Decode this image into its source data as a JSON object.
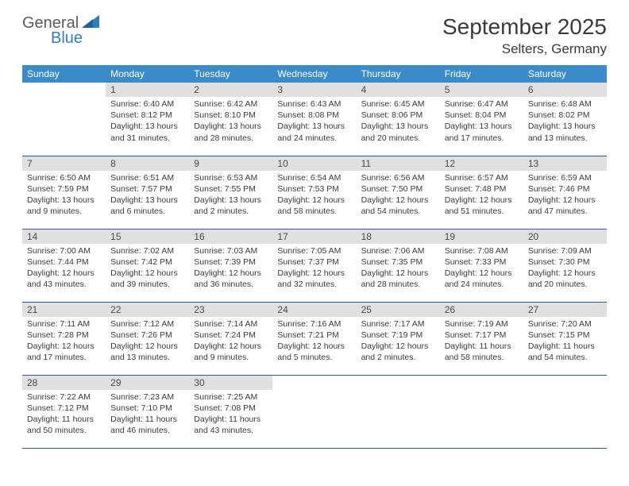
{
  "logo": {
    "line1": "General",
    "line2": "Blue"
  },
  "title": "September 2025",
  "location": "Selters, Germany",
  "colors": {
    "header_bg": "#3b8bc9",
    "header_text": "#ffffff",
    "daynum_bg": "#e0e0e0",
    "row_border": "#2d5a8a",
    "text": "#3a3a3a",
    "logo_gray": "#5b5b5b",
    "logo_blue": "#2f7fbf"
  },
  "day_headers": [
    "Sunday",
    "Monday",
    "Tuesday",
    "Wednesday",
    "Thursday",
    "Friday",
    "Saturday"
  ],
  "weeks": [
    [
      null,
      {
        "n": "1",
        "sr": "6:40 AM",
        "ss": "8:12 PM",
        "dl": "13 hours and 31 minutes."
      },
      {
        "n": "2",
        "sr": "6:42 AM",
        "ss": "8:10 PM",
        "dl": "13 hours and 28 minutes."
      },
      {
        "n": "3",
        "sr": "6:43 AM",
        "ss": "8:08 PM",
        "dl": "13 hours and 24 minutes."
      },
      {
        "n": "4",
        "sr": "6:45 AM",
        "ss": "8:06 PM",
        "dl": "13 hours and 20 minutes."
      },
      {
        "n": "5",
        "sr": "6:47 AM",
        "ss": "8:04 PM",
        "dl": "13 hours and 17 minutes."
      },
      {
        "n": "6",
        "sr": "6:48 AM",
        "ss": "8:02 PM",
        "dl": "13 hours and 13 minutes."
      }
    ],
    [
      {
        "n": "7",
        "sr": "6:50 AM",
        "ss": "7:59 PM",
        "dl": "13 hours and 9 minutes."
      },
      {
        "n": "8",
        "sr": "6:51 AM",
        "ss": "7:57 PM",
        "dl": "13 hours and 6 minutes."
      },
      {
        "n": "9",
        "sr": "6:53 AM",
        "ss": "7:55 PM",
        "dl": "13 hours and 2 minutes."
      },
      {
        "n": "10",
        "sr": "6:54 AM",
        "ss": "7:53 PM",
        "dl": "12 hours and 58 minutes."
      },
      {
        "n": "11",
        "sr": "6:56 AM",
        "ss": "7:50 PM",
        "dl": "12 hours and 54 minutes."
      },
      {
        "n": "12",
        "sr": "6:57 AM",
        "ss": "7:48 PM",
        "dl": "12 hours and 51 minutes."
      },
      {
        "n": "13",
        "sr": "6:59 AM",
        "ss": "7:46 PM",
        "dl": "12 hours and 47 minutes."
      }
    ],
    [
      {
        "n": "14",
        "sr": "7:00 AM",
        "ss": "7:44 PM",
        "dl": "12 hours and 43 minutes."
      },
      {
        "n": "15",
        "sr": "7:02 AM",
        "ss": "7:42 PM",
        "dl": "12 hours and 39 minutes."
      },
      {
        "n": "16",
        "sr": "7:03 AM",
        "ss": "7:39 PM",
        "dl": "12 hours and 36 minutes."
      },
      {
        "n": "17",
        "sr": "7:05 AM",
        "ss": "7:37 PM",
        "dl": "12 hours and 32 minutes."
      },
      {
        "n": "18",
        "sr": "7:06 AM",
        "ss": "7:35 PM",
        "dl": "12 hours and 28 minutes."
      },
      {
        "n": "19",
        "sr": "7:08 AM",
        "ss": "7:33 PM",
        "dl": "12 hours and 24 minutes."
      },
      {
        "n": "20",
        "sr": "7:09 AM",
        "ss": "7:30 PM",
        "dl": "12 hours and 20 minutes."
      }
    ],
    [
      {
        "n": "21",
        "sr": "7:11 AM",
        "ss": "7:28 PM",
        "dl": "12 hours and 17 minutes."
      },
      {
        "n": "22",
        "sr": "7:12 AM",
        "ss": "7:26 PM",
        "dl": "12 hours and 13 minutes."
      },
      {
        "n": "23",
        "sr": "7:14 AM",
        "ss": "7:24 PM",
        "dl": "12 hours and 9 minutes."
      },
      {
        "n": "24",
        "sr": "7:16 AM",
        "ss": "7:21 PM",
        "dl": "12 hours and 5 minutes."
      },
      {
        "n": "25",
        "sr": "7:17 AM",
        "ss": "7:19 PM",
        "dl": "12 hours and 2 minutes."
      },
      {
        "n": "26",
        "sr": "7:19 AM",
        "ss": "7:17 PM",
        "dl": "11 hours and 58 minutes."
      },
      {
        "n": "27",
        "sr": "7:20 AM",
        "ss": "7:15 PM",
        "dl": "11 hours and 54 minutes."
      }
    ],
    [
      {
        "n": "28",
        "sr": "7:22 AM",
        "ss": "7:12 PM",
        "dl": "11 hours and 50 minutes."
      },
      {
        "n": "29",
        "sr": "7:23 AM",
        "ss": "7:10 PM",
        "dl": "11 hours and 46 minutes."
      },
      {
        "n": "30",
        "sr": "7:25 AM",
        "ss": "7:08 PM",
        "dl": "11 hours and 43 minutes."
      },
      null,
      null,
      null,
      null
    ]
  ],
  "labels": {
    "sunrise": "Sunrise:",
    "sunset": "Sunset:",
    "daylight": "Daylight:"
  }
}
